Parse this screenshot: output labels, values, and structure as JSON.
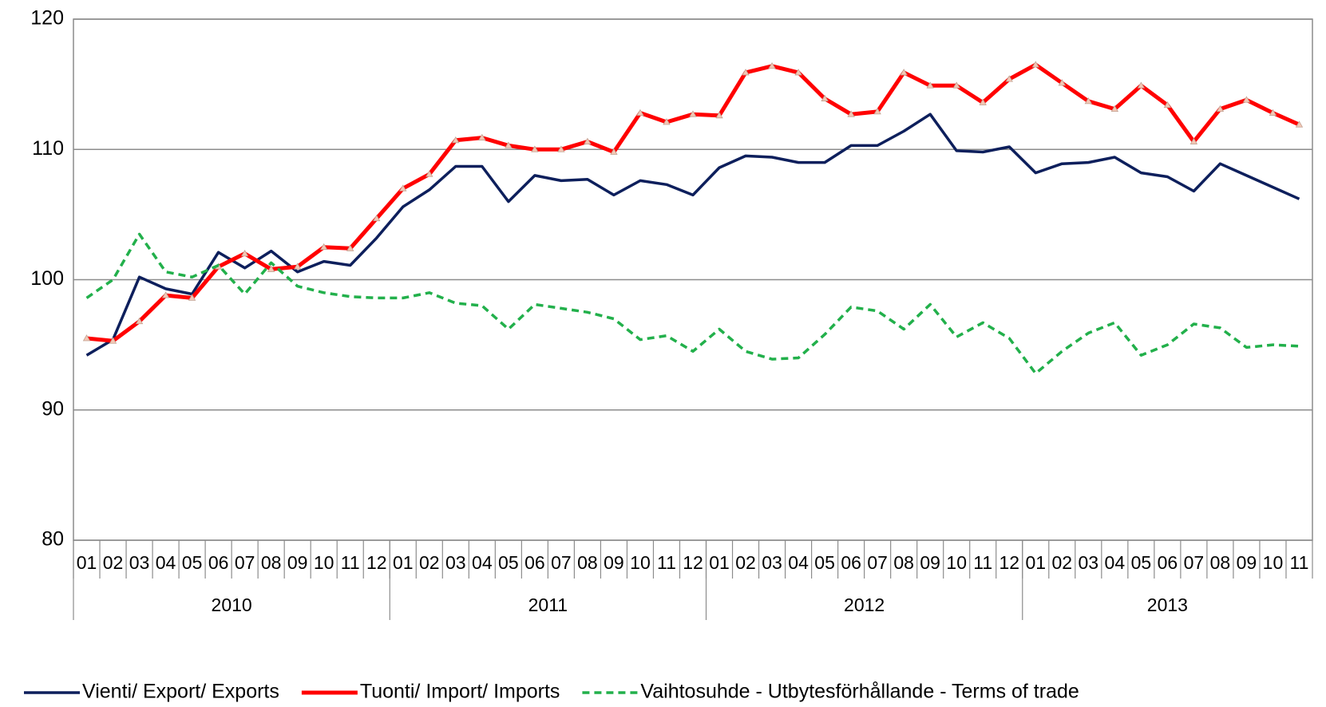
{
  "chart_data": {
    "type": "line",
    "categories": [
      "01",
      "02",
      "03",
      "04",
      "05",
      "06",
      "07",
      "08",
      "09",
      "10",
      "11",
      "12",
      "01",
      "02",
      "03",
      "04",
      "05",
      "06",
      "07",
      "08",
      "09",
      "10",
      "11",
      "12",
      "01",
      "02",
      "03",
      "04",
      "05",
      "06",
      "07",
      "08",
      "09",
      "10",
      "11",
      "12",
      "01",
      "02",
      "03",
      "04",
      "05",
      "06",
      "07",
      "08",
      "09",
      "10",
      "11"
    ],
    "groups": [
      "2010",
      "2011",
      "2012",
      "2013"
    ],
    "series": [
      {
        "name": "Vienti/ Export/ Exports",
        "color": "#0d1f5c",
        "style": "solid",
        "values": [
          94.2,
          95.4,
          100.2,
          99.3,
          98.9,
          102.1,
          100.9,
          102.2,
          100.6,
          101.4,
          101.1,
          103.2,
          105.6,
          106.9,
          108.7,
          108.7,
          106.0,
          108.0,
          107.6,
          107.7,
          106.5,
          107.6,
          107.3,
          106.5,
          108.6,
          109.5,
          109.4,
          109.0,
          109.0,
          110.3,
          110.3,
          111.4,
          112.7,
          109.9,
          109.8,
          110.2,
          108.2,
          108.9,
          109.0,
          109.4,
          108.2,
          107.9,
          106.8,
          108.9,
          108.0,
          107.1,
          106.2
        ]
      },
      {
        "name": "Tuonti/ Import/ Imports",
        "color": "#ff0000",
        "style": "solid",
        "marker": "triangle",
        "values": [
          95.5,
          95.3,
          96.8,
          98.8,
          98.6,
          101.0,
          102.0,
          100.8,
          101.0,
          102.5,
          102.4,
          104.7,
          107.0,
          108.1,
          110.7,
          110.9,
          110.3,
          110.0,
          110.0,
          110.6,
          109.8,
          112.8,
          112.1,
          112.7,
          112.6,
          115.9,
          116.4,
          115.9,
          113.9,
          112.7,
          112.9,
          115.9,
          114.9,
          114.9,
          113.6,
          115.4,
          116.5,
          115.1,
          113.7,
          113.1,
          114.9,
          113.4,
          110.6,
          113.1,
          113.8,
          112.8,
          111.9
        ]
      },
      {
        "name": "Vaihtosuhde - Utbytesförhållande - Terms of trade",
        "color": "#22b04b",
        "style": "dashed",
        "values": [
          98.6,
          100.0,
          103.5,
          100.6,
          100.2,
          101.1,
          98.9,
          101.3,
          99.5,
          99.0,
          98.7,
          98.6,
          98.6,
          99.0,
          98.2,
          98.0,
          96.2,
          98.1,
          97.8,
          97.5,
          97.0,
          95.4,
          95.7,
          94.5,
          96.2,
          94.5,
          93.9,
          94.0,
          95.8,
          97.9,
          97.6,
          96.2,
          98.1,
          95.6,
          96.7,
          95.5,
          92.8,
          94.5,
          95.9,
          96.7,
          94.2,
          95.0,
          96.6,
          96.3,
          94.8,
          95.0,
          94.9
        ]
      }
    ],
    "ylim": [
      80,
      120
    ],
    "yticks": [
      80,
      90,
      100,
      110,
      120
    ],
    "grid": true,
    "legend": "bottom"
  }
}
